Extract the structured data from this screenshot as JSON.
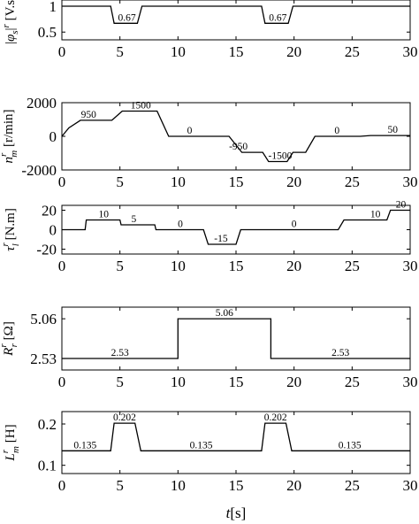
{
  "chart_data": [
    {
      "type": "line",
      "ylabel": "|φs|r [V.s]",
      "xlim": [
        0,
        30
      ],
      "ylim": [
        0.35,
        1.12
      ],
      "yticks": [
        0.5,
        1
      ],
      "xticks": [
        0,
        5,
        10,
        15,
        20,
        25,
        30
      ],
      "x": [
        0,
        4.2,
        4.5,
        6.5,
        6.9,
        17.2,
        17.5,
        19.5,
        19.9,
        30
      ],
      "y": [
        1,
        1,
        0.67,
        0.67,
        1,
        1,
        0.67,
        0.67,
        1,
        1
      ],
      "annotations": [
        {
          "text": "0.67",
          "x": 5.6,
          "y": 0.67
        },
        {
          "text": "0.67",
          "x": 18.6,
          "y": 0.67
        }
      ]
    },
    {
      "type": "line",
      "ylabel": "nmr [r/min]",
      "xlim": [
        0,
        30
      ],
      "ylim": [
        -2000,
        2000
      ],
      "yticks": [
        -2000,
        0,
        2000
      ],
      "xticks": [
        0,
        5,
        10,
        15,
        20,
        25,
        30
      ],
      "x": [
        0,
        0.6,
        1.6,
        4.3,
        5.2,
        8.2,
        9.2,
        14.4,
        15.5,
        17.3,
        17.8,
        19.4,
        19.9,
        21.0,
        21.8,
        25.7,
        26.6,
        30
      ],
      "y": [
        0,
        500,
        950,
        950,
        1500,
        1500,
        0,
        0,
        -950,
        -950,
        -1500,
        -1500,
        -950,
        -950,
        0,
        0,
        50,
        50
      ],
      "annotations": [
        {
          "text": "950",
          "x": 2.3,
          "y": 950
        },
        {
          "text": "1500",
          "x": 6.8,
          "y": 1500
        },
        {
          "text": "0",
          "x": 11.0,
          "y": 0
        },
        {
          "text": "-950",
          "x": 15.2,
          "y": -950
        },
        {
          "text": "-1500",
          "x": 18.8,
          "y": -1500
        },
        {
          "text": "0",
          "x": 23.7,
          "y": 0
        },
        {
          "text": "50",
          "x": 28.5,
          "y": 50
        }
      ]
    },
    {
      "type": "line",
      "ylabel": "τlr [N.m]",
      "xlim": [
        0,
        30
      ],
      "ylim": [
        -25,
        25
      ],
      "yticks": [
        -20,
        0,
        20
      ],
      "xticks": [
        0,
        5,
        10,
        15,
        20,
        25,
        30
      ],
      "x": [
        0,
        2.0,
        2.1,
        5.0,
        5.1,
        8.0,
        8.1,
        12.2,
        12.6,
        15.0,
        15.4,
        23.8,
        24.3,
        28.0,
        28.3,
        30
      ],
      "y": [
        0,
        0,
        10,
        10,
        5,
        5,
        0,
        0,
        -15,
        -15,
        0,
        0,
        10,
        10,
        20,
        20
      ],
      "annotations": [
        {
          "text": "10",
          "x": 3.6,
          "y": 10
        },
        {
          "text": "5",
          "x": 6.2,
          "y": 5
        },
        {
          "text": "0",
          "x": 10.2,
          "y": 0
        },
        {
          "text": "-15",
          "x": 13.7,
          "y": -15
        },
        {
          "text": "0",
          "x": 20.0,
          "y": 0
        },
        {
          "text": "10",
          "x": 27.0,
          "y": 10
        },
        {
          "text": "20",
          "x": 29.2,
          "y": 20
        }
      ]
    },
    {
      "type": "line",
      "ylabel": "Rrr [Ω]",
      "xlim": [
        0,
        30
      ],
      "ylim": [
        1.8,
        5.8
      ],
      "yticks": [
        2.53,
        5.06
      ],
      "ytick_labels": [
        "2.53",
        "5.06"
      ],
      "xticks": [
        0,
        5,
        10,
        15,
        20,
        25,
        30
      ],
      "x": [
        0,
        10.0,
        10.0,
        18.0,
        18.0,
        30
      ],
      "y": [
        2.53,
        2.53,
        5.06,
        5.06,
        2.53,
        2.53
      ],
      "annotations": [
        {
          "text": "2.53",
          "x": 5.0,
          "y": 2.53
        },
        {
          "text": "5.06",
          "x": 14.0,
          "y": 5.06
        },
        {
          "text": "2.53",
          "x": 24.0,
          "y": 2.53
        }
      ]
    },
    {
      "type": "line",
      "ylabel": "Lmr [H]",
      "xlim": [
        0,
        30
      ],
      "ylim": [
        0.08,
        0.23
      ],
      "yticks": [
        0.1,
        0.2
      ],
      "xticks": [
        0,
        5,
        10,
        15,
        20,
        25,
        30
      ],
      "xlabel": "t[s]",
      "x": [
        0,
        4.2,
        4.5,
        6.3,
        6.8,
        17.2,
        17.5,
        19.3,
        19.8,
        30
      ],
      "y": [
        0.135,
        0.135,
        0.202,
        0.202,
        0.135,
        0.135,
        0.202,
        0.202,
        0.135,
        0.135
      ],
      "annotations": [
        {
          "text": "0.135",
          "x": 2.0,
          "y": 0.135
        },
        {
          "text": "0.202",
          "x": 5.4,
          "y": 0.202
        },
        {
          "text": "0.135",
          "x": 12.0,
          "y": 0.135
        },
        {
          "text": "0.202",
          "x": 18.4,
          "y": 0.202
        },
        {
          "text": "0.135",
          "x": 24.8,
          "y": 0.135
        }
      ]
    }
  ]
}
